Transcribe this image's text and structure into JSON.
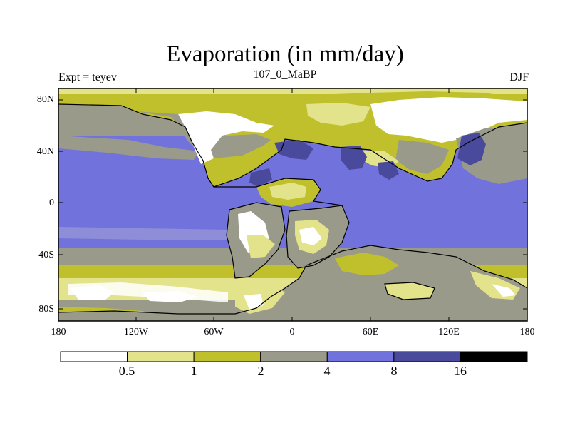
{
  "title": "Evaporation (in mm/day)",
  "subtitle_left": "Expt = teyev",
  "subtitle_center": "107_0_MaBP",
  "subtitle_right": "DJF",
  "y_ticks": [
    "80N",
    "40N",
    "0",
    "40S",
    "80S"
  ],
  "x_ticks": [
    "180",
    "120W",
    "60W",
    "0",
    "60E",
    "120E",
    "180"
  ],
  "colorbar": {
    "boundaries": [
      "0.5",
      "1",
      "2",
      "4",
      "8",
      "16"
    ],
    "colors": [
      "#ffffff",
      "#e3e38c",
      "#c0c02c",
      "#9a9a8a",
      "#7272dc",
      "#4a4a9c",
      "#000000"
    ]
  },
  "colors": {
    "white": "#ffffff",
    "pale": "#e3e38c",
    "olive": "#c0c02c",
    "gray": "#9a9a8a",
    "blue": "#7272dc",
    "dark_blue": "#4a4a9c"
  }
}
